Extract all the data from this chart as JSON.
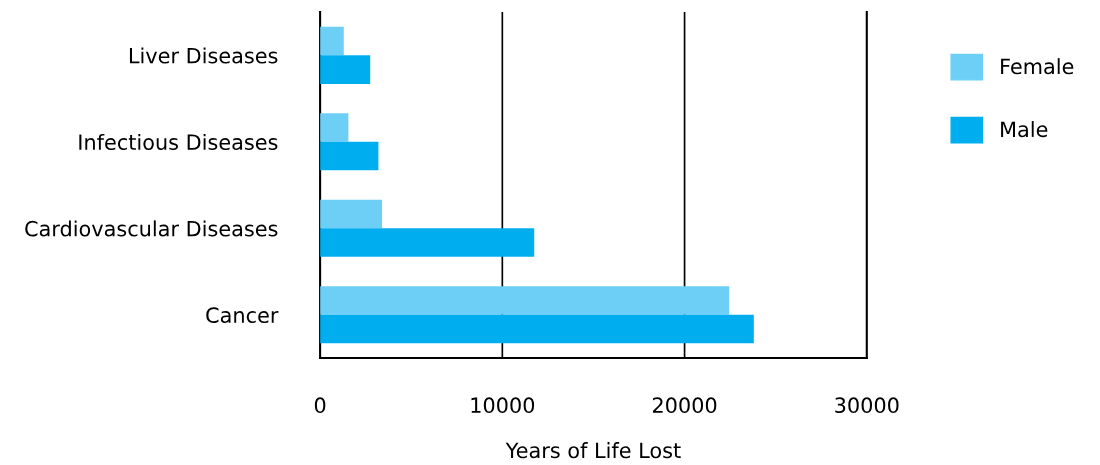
{
  "chart_data": {
    "type": "bar",
    "orientation": "horizontal",
    "xlabel": "Years of Life Lost",
    "categories": [
      "Liver Diseases",
      "Infectious Diseases",
      "Cardiovascular Diseases",
      "Cancer"
    ],
    "series": [
      {
        "name": "Female",
        "color": "#6dcff6",
        "values": [
          1300,
          1550,
          3400,
          22450
        ]
      },
      {
        "name": "Male",
        "color": "#00aeef",
        "values": [
          2750,
          3200,
          11750,
          23800
        ]
      }
    ],
    "xlim": [
      0,
      30000
    ],
    "xticks": [
      0,
      10000,
      20000,
      30000
    ],
    "grid": "x",
    "legend": "right"
  }
}
